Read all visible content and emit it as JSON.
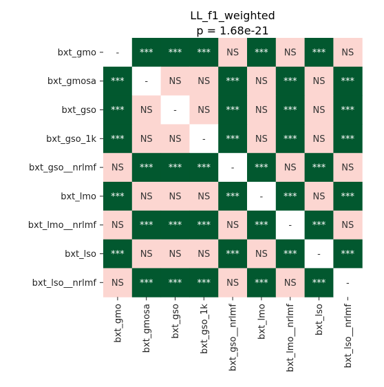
{
  "chart_data": {
    "type": "heatmap",
    "title": "LL_f1_weighted",
    "subtitle": "p = 1.68e-21",
    "rows": [
      "bxt_gmo",
      "bxt_gmosa",
      "bxt_gso",
      "bxt_gso_1k",
      "bxt_gso__nrlmf",
      "bxt_lmo",
      "bxt_lmo__nrlmf",
      "bxt_lso",
      "bxt_lso__nrlmf"
    ],
    "columns": [
      "bxt_gmo",
      "bxt_gmosa",
      "bxt_gso",
      "bxt_gso_1k",
      "bxt_gso__nrlmf",
      "bxt_lmo",
      "bxt_lmo__nrlmf",
      "bxt_lso",
      "bxt_lso__nrlmf"
    ],
    "cells": [
      [
        "-",
        "***",
        "***",
        "***",
        "NS",
        "***",
        "NS",
        "***",
        "NS"
      ],
      [
        "***",
        "-",
        "NS",
        "NS",
        "***",
        "NS",
        "***",
        "NS",
        "***"
      ],
      [
        "***",
        "NS",
        "-",
        "NS",
        "***",
        "NS",
        "***",
        "NS",
        "***"
      ],
      [
        "***",
        "NS",
        "NS",
        "-",
        "***",
        "NS",
        "***",
        "NS",
        "***"
      ],
      [
        "NS",
        "***",
        "***",
        "***",
        "-",
        "***",
        "NS",
        "***",
        "NS"
      ],
      [
        "***",
        "NS",
        "NS",
        "NS",
        "***",
        "-",
        "***",
        "NS",
        "***"
      ],
      [
        "NS",
        "***",
        "***",
        "***",
        "NS",
        "***",
        "-",
        "***",
        "NS"
      ],
      [
        "***",
        "NS",
        "NS",
        "NS",
        "***",
        "NS",
        "***",
        "-",
        "***"
      ],
      [
        "NS",
        "***",
        "***",
        "***",
        "NS",
        "***",
        "NS",
        "***",
        "-"
      ]
    ],
    "colors": {
      "significant": "#02582f",
      "not_significant": "#fcd6d1",
      "diagonal": "#ffffff",
      "significant_text": "#ffffff",
      "not_significant_text": "#333333",
      "diagonal_text": "#333333"
    },
    "grid": false,
    "legend": "none"
  }
}
